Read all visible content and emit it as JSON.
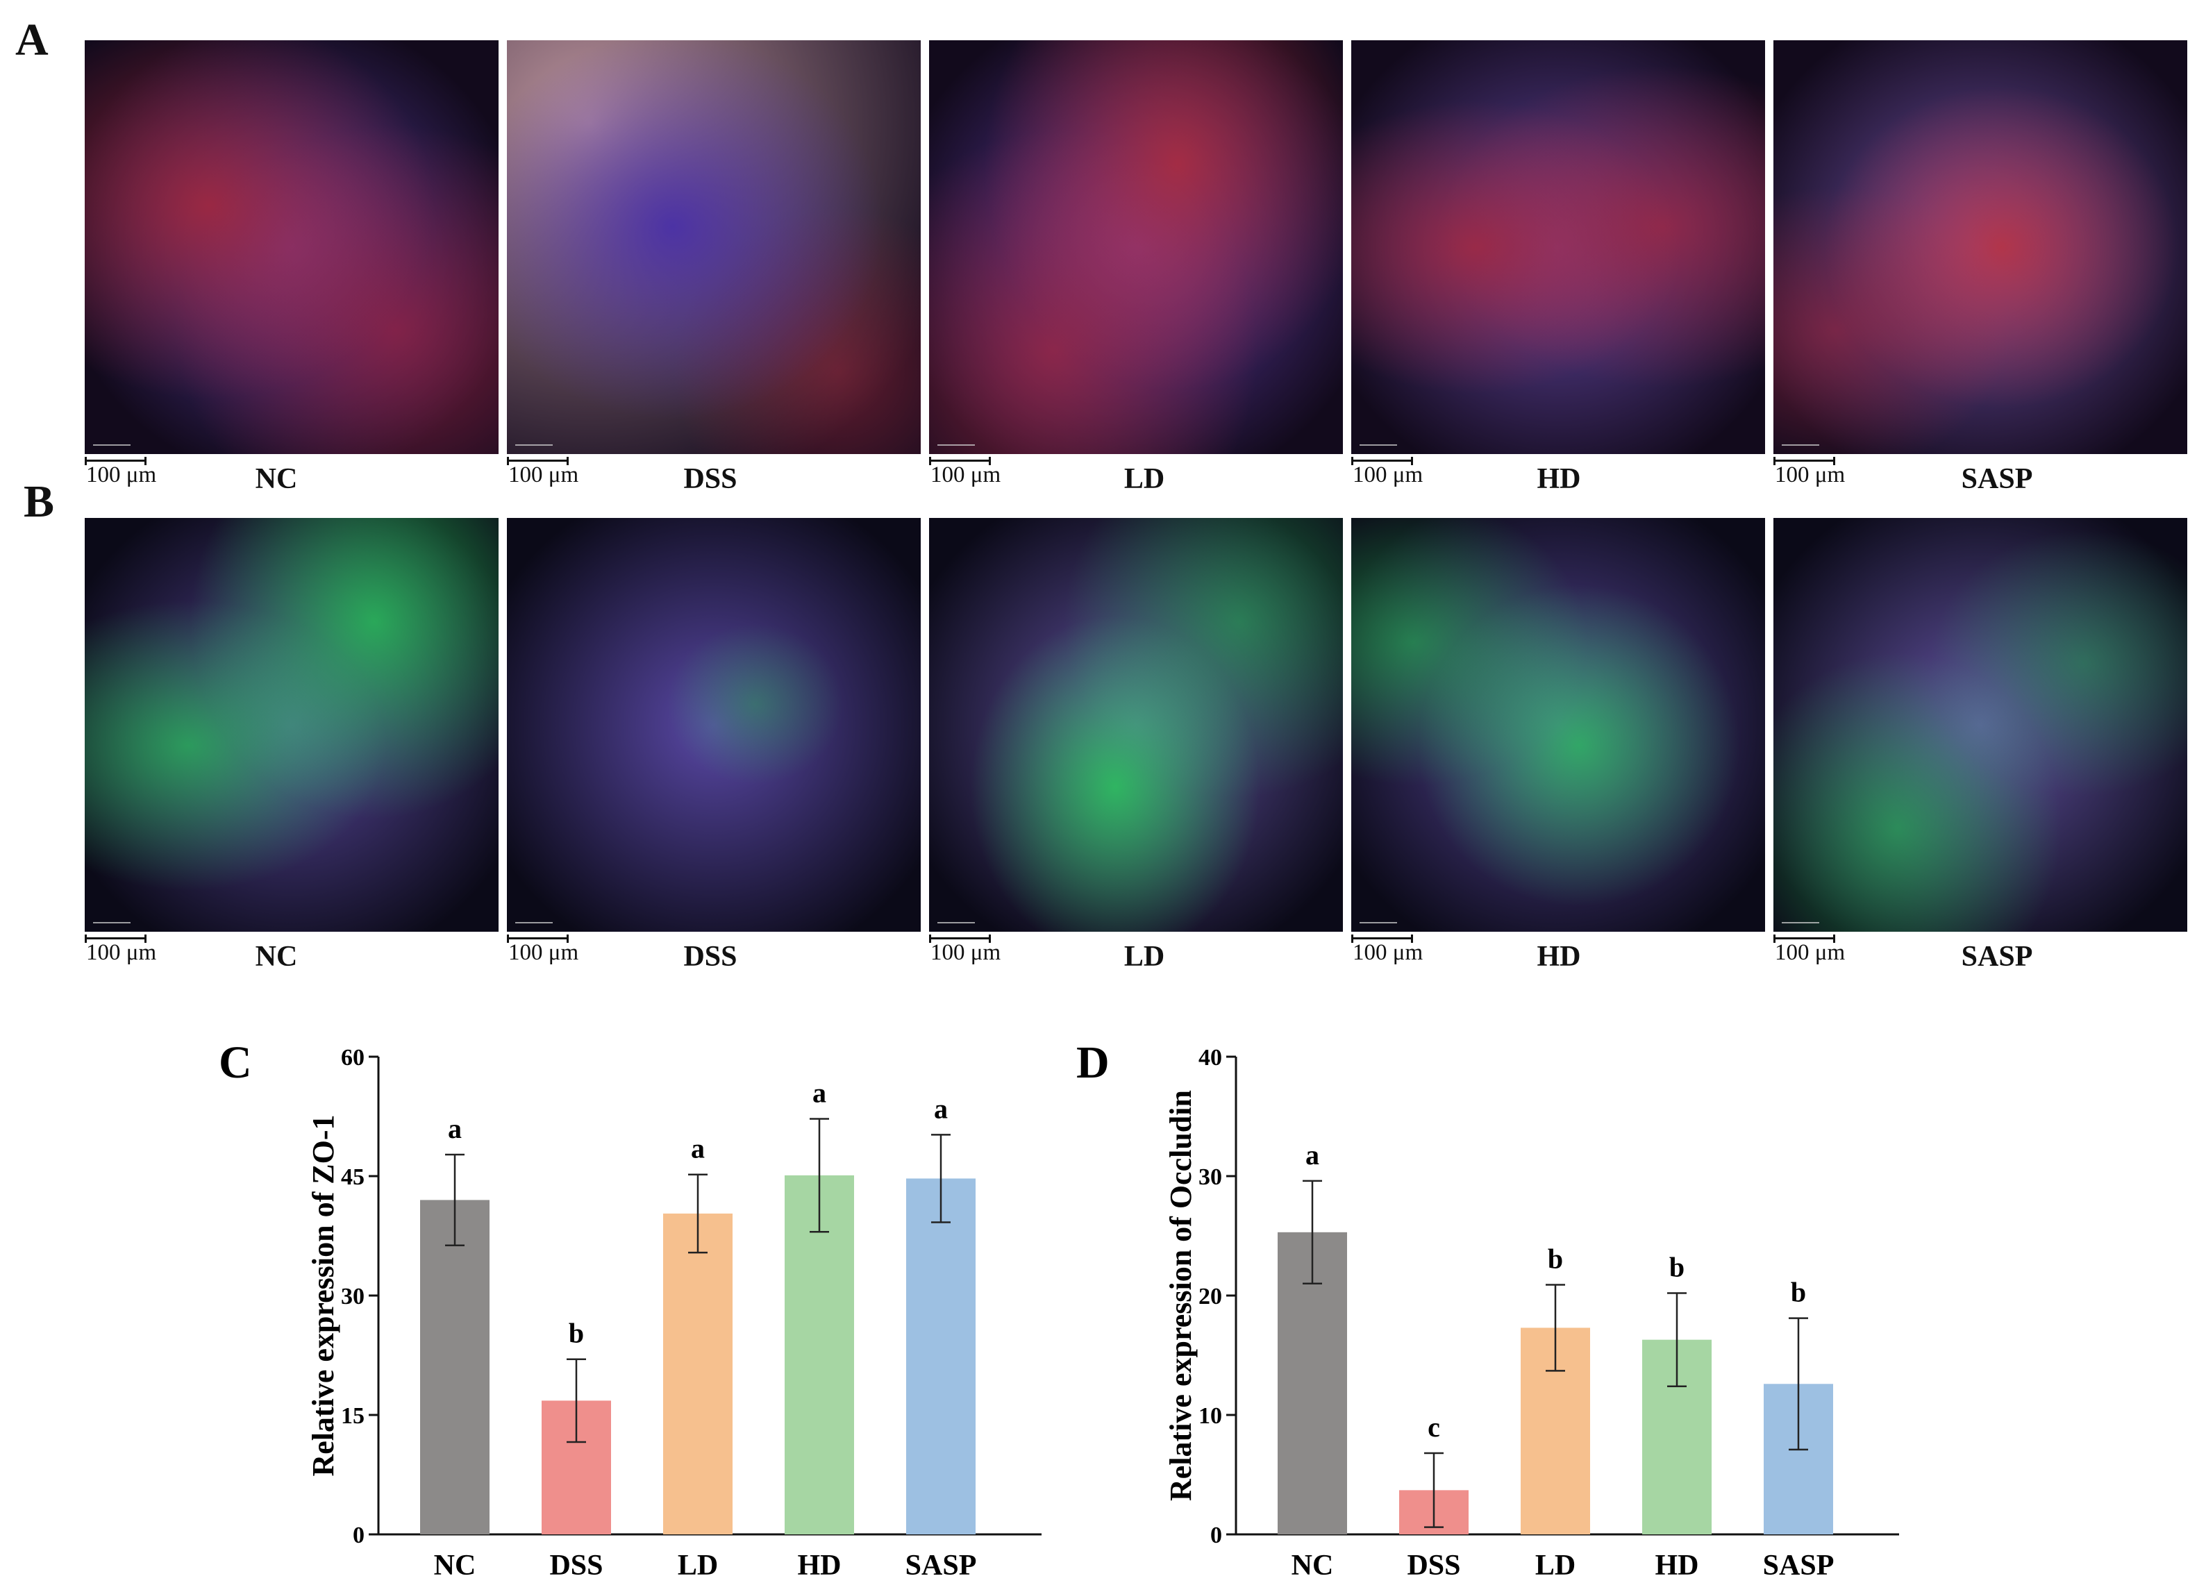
{
  "panels": {
    "A": {
      "letter": "A",
      "scale_text": "100 μm",
      "groups": [
        "NC",
        "DSS",
        "LD",
        "HD",
        "SASP"
      ],
      "stain": "red-blue"
    },
    "B": {
      "letter": "B",
      "scale_text": "100 μm",
      "groups": [
        "NC",
        "DSS",
        "LD",
        "HD",
        "SASP"
      ],
      "stain": "green-blue"
    }
  },
  "colors": {
    "NC": "#8c8a89",
    "DSS": "#ef8f8c",
    "LD": "#f6c08e",
    "HD": "#a6d6a3",
    "SASP": "#9dc0e2"
  },
  "chart_data": [
    {
      "letter": "C",
      "type": "bar",
      "categories": [
        "NC",
        "DSS",
        "LD",
        "HD",
        "SASP"
      ],
      "values": [
        42.0,
        16.8,
        40.3,
        45.1,
        44.7
      ],
      "errors": [
        5.7,
        5.2,
        4.9,
        7.1,
        5.5
      ],
      "significance": [
        "a",
        "b",
        "a",
        "a",
        "a"
      ],
      "title": "",
      "xlabel": "",
      "ylabel": "Relative expression of ZO-1",
      "ylim": [
        0,
        60
      ],
      "yticks": [
        "0",
        "15",
        "30",
        "45",
        "60"
      ],
      "grid": false
    },
    {
      "letter": "D",
      "type": "bar",
      "categories": [
        "NC",
        "DSS",
        "LD",
        "HD",
        "SASP"
      ],
      "values": [
        25.3,
        3.7,
        17.3,
        16.3,
        12.6
      ],
      "errors": [
        4.3,
        3.1,
        3.6,
        3.9,
        5.5
      ],
      "significance": [
        "a",
        "c",
        "b",
        "b",
        "b"
      ],
      "title": "",
      "xlabel": "",
      "ylabel": "Relative expression of Occludin",
      "ylim": [
        0,
        40
      ],
      "yticks": [
        "0",
        "10",
        "20",
        "30",
        "40"
      ],
      "grid": false
    }
  ]
}
